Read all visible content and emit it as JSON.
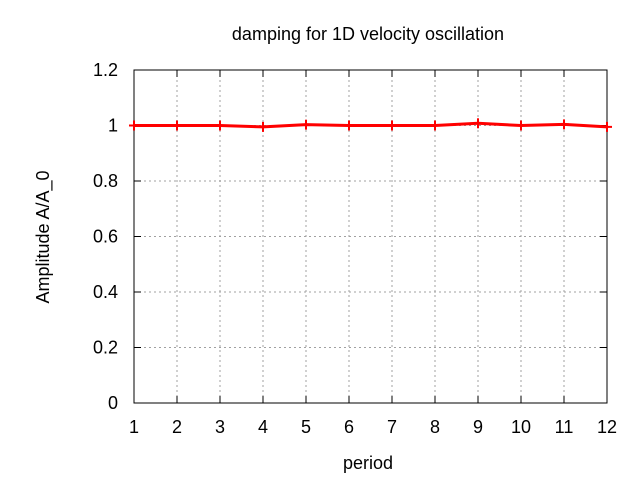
{
  "chart_data": {
    "type": "line",
    "title": "damping for 1D velocity oscillation",
    "xlabel": "period",
    "ylabel": "Amplitude A/A_0",
    "xlim": [
      1,
      12
    ],
    "ylim": [
      0,
      1.2
    ],
    "x_ticks": [
      1,
      2,
      3,
      4,
      5,
      6,
      7,
      8,
      9,
      10,
      11,
      12
    ],
    "y_ticks": [
      "0",
      "0.2",
      "0.4",
      "0.6",
      "0.8",
      "1",
      "1.2"
    ],
    "grid": true,
    "series": [
      {
        "color": "#ff0000",
        "marker": "plus",
        "x": [
          1,
          2,
          3,
          4,
          5,
          6,
          7,
          8,
          9,
          10,
          11,
          12
        ],
        "y": [
          1.0,
          1.0,
          1.0,
          0.995,
          1.003,
          1.0,
          1.0,
          1.0,
          1.008,
          1.0,
          1.004,
          0.995
        ]
      }
    ]
  }
}
